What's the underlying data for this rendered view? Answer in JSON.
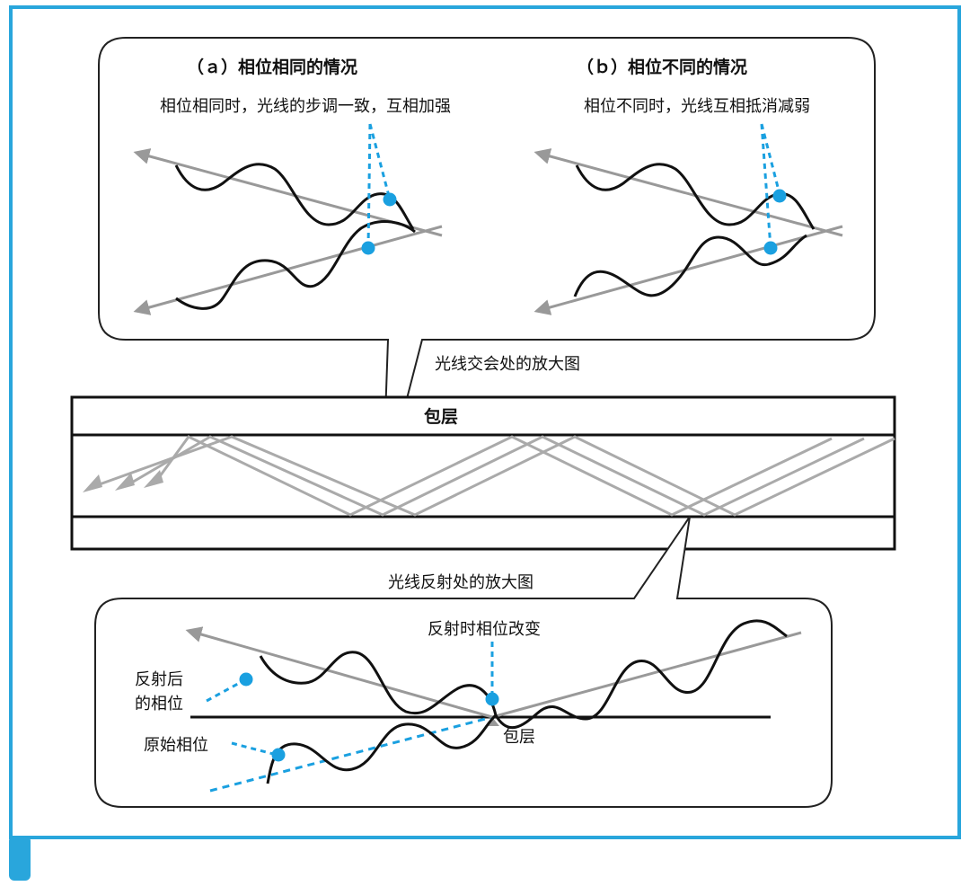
{
  "colors": {
    "frame": "#29a6dc",
    "accent": "#1aa0e0",
    "ray": "#999999",
    "wave": "#111111",
    "outline": "#111111"
  },
  "panel_a": {
    "title": "（ａ）相位相同的情况",
    "note": "相位相同时，光线的步调一致，互相加强"
  },
  "panel_b": {
    "title": "（ｂ）相位不同的情况",
    "note": "相位不同时，光线互相抵消减弱"
  },
  "fiber": {
    "intersection_caption": "光线交会处的放大图",
    "cladding_label": "包层",
    "reflection_caption": "光线反射处的放大图"
  },
  "panel_c": {
    "phase_change_label": "反射时相位改变",
    "after_phase_line1": "反射后",
    "after_phase_line2": "的相位",
    "original_phase": "原始相位",
    "cladding_label": "包层"
  }
}
